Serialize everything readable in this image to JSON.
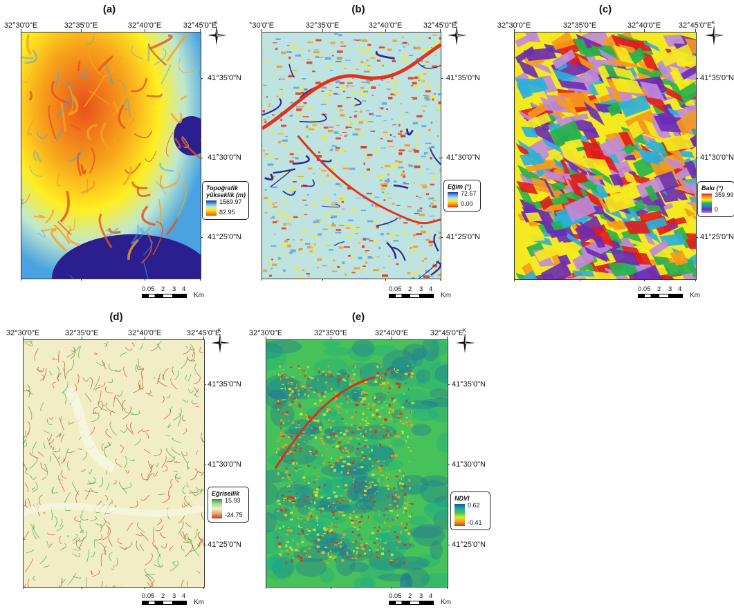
{
  "panels": [
    {
      "label": "(a)",
      "theme": "elevation",
      "lon_labels": [
        "32°30'0\"E",
        "32°35'0\"E",
        "32°40'0\"E",
        "32°45'0\"E"
      ],
      "lat_labels": [
        "41°35'0\"N",
        "41°30'0\"N",
        "41°25'0\"N"
      ],
      "legend": {
        "title": "Topoğrafik yükseklik (m)",
        "max": "1569.97",
        "min": "82.95",
        "colors": [
          "#2b1f8f",
          "#4aa3e0",
          "#bfe8d0",
          "#ffee22",
          "#f7a21b",
          "#e8501c"
        ]
      },
      "scale": {
        "numbers": [
          "0.05",
          "2",
          "3",
          "4"
        ],
        "unit": "Km"
      },
      "north": "K"
    },
    {
      "label": "(b)",
      "theme": "slope",
      "lon_labels": [
        "°30'0\"E",
        "32°35'0\"E",
        "32°40'0\"E",
        "32°45'0\"E"
      ],
      "lat_labels": [
        "41°35'0\"N",
        "41°30'0\"N",
        "41°25'0\"N"
      ],
      "legend": {
        "title": "Eğim (°)",
        "max": "72.67",
        "min": "0.00",
        "colors": [
          "#2a2a9a",
          "#56a6e6",
          "#bfe3e0",
          "#f5ea1f",
          "#f29a1d",
          "#e2331a"
        ]
      },
      "scale": {
        "numbers": [
          "0.05",
          "2",
          "3",
          "4"
        ],
        "unit": "Km"
      },
      "north": "K"
    },
    {
      "label": "(c)",
      "theme": "aspect",
      "lon_labels": [
        "32°30'0\"E",
        "32°35'0\"E",
        "32°40'0\"E",
        "32°45'0\"E"
      ],
      "lat_labels": [
        "41°35'0\"N",
        "41°30'0\"N",
        "41°25'0\"N"
      ],
      "legend": {
        "title": "Bakı (°)",
        "max": "359.99",
        "min": "0",
        "colors": [
          "#e21b1b",
          "#f79a1b",
          "#f5ea1f",
          "#27b24c",
          "#2b7fd9",
          "#6a2bb5",
          "#c08ad9"
        ]
      },
      "scale": {
        "numbers": [
          "0.05",
          "2",
          "3",
          "4"
        ],
        "unit": "Km"
      },
      "north": "K"
    },
    {
      "label": "(d)",
      "theme": "curvature",
      "lon_labels": [
        "32°30'0\"E",
        "32°35'0\"E",
        "32°40'0\"E",
        "32°45'0\"E"
      ],
      "lat_labels": [
        "41°35'0\"N",
        "41°30'0\"N",
        "41°25'0\"N"
      ],
      "legend": {
        "title": "Eğrisellik",
        "max": "15.93",
        "min": "-24.75",
        "colors": [
          "#2e9e3a",
          "#a9d89a",
          "#f3efc8",
          "#e9a36b",
          "#c0391c"
        ]
      },
      "scale": {
        "numbers": [
          "0.05",
          "2",
          "3",
          "4"
        ],
        "unit": "Km"
      },
      "north": "K"
    },
    {
      "label": "(e)",
      "theme": "ndvi",
      "lon_labels": [
        "32°30'0\"E",
        "32°35'0\"E",
        "32°40'0\"E",
        "32°45'0\"E"
      ],
      "lat_labels": [
        "41°35'0\"N",
        "41°30'0\"N",
        "41°25'0\"N"
      ],
      "legend": {
        "title": "NDVI",
        "max": "0.62",
        "min": "-0.41",
        "colors": [
          "#1c4f9c",
          "#1aa8a0",
          "#47c25a",
          "#d6e62a",
          "#f0a21c",
          "#d2341a"
        ]
      },
      "scale": {
        "numbers": [
          "0.05",
          "2",
          "3",
          "4"
        ],
        "unit": "Km"
      },
      "north": "K"
    }
  ],
  "colors": {
    "elevation": [
      "#2b1f8f",
      "#4aa3e0",
      "#bfe8d0",
      "#ffee22",
      "#f7a21b",
      "#e8501c"
    ],
    "slope": [
      "#56a6e6",
      "#bfe3e0",
      "#f5ea1f",
      "#f29a1d",
      "#e2331a",
      "#2a2a9a"
    ],
    "aspect": [
      "#e21b1b",
      "#f79a1b",
      "#f5ea1f",
      "#27b24c",
      "#2bb0d9",
      "#6a2bb5",
      "#c08ad9"
    ],
    "curvature": [
      "#f1edc5",
      "#e9e5b8",
      "#2e9e3a",
      "#c0391c"
    ],
    "ndvi": [
      "#1aa88a",
      "#47c25a",
      "#d6e62a",
      "#f0a21c",
      "#d2341a",
      "#1c6f9c"
    ]
  }
}
